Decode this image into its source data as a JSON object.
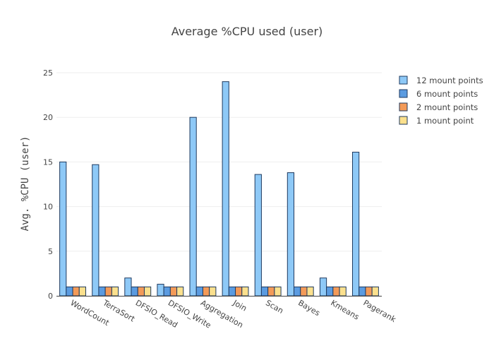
{
  "chart_data": {
    "type": "bar",
    "title": "Average %CPU used (user)",
    "xlabel": "",
    "ylabel": "Avg. %CPU (user)",
    "ylim": [
      0,
      25
    ],
    "yticks": [
      0,
      5,
      10,
      15,
      20,
      25
    ],
    "grid": true,
    "legend_position": "top-right",
    "categories": [
      "WordCount",
      "TerraSort",
      "DFSIO_Read",
      "DFSIO_Write",
      "Aggregation",
      "Join",
      "Scan",
      "Bayes",
      "Kmeans",
      "Pagerank"
    ],
    "series": [
      {
        "name": "12 mount points",
        "color": "#8ec9f7",
        "values": [
          15.0,
          14.7,
          2.0,
          1.3,
          20.0,
          24.0,
          13.6,
          13.8,
          2.0,
          16.1
        ]
      },
      {
        "name": "6 mount points",
        "color": "#5b9be0",
        "values": [
          1,
          1,
          1,
          1,
          1,
          1,
          1,
          1,
          1,
          1
        ]
      },
      {
        "name": "2 mount points",
        "color": "#f39a58",
        "values": [
          1,
          1,
          1,
          1,
          1,
          1,
          1,
          1,
          1,
          1
        ]
      },
      {
        "name": "1 mount point",
        "color": "#fbe08d",
        "values": [
          1,
          1,
          1,
          1,
          1,
          1,
          1,
          1,
          1,
          1
        ]
      }
    ]
  }
}
